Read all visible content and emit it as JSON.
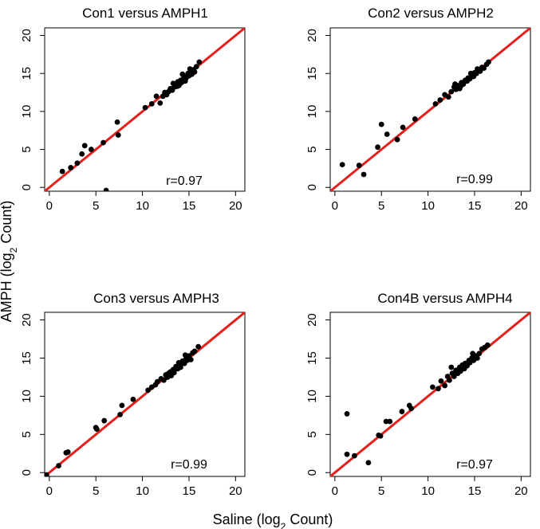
{
  "chart_data": {
    "type": "scatter",
    "x_axis_label": {
      "main": "Saline (log",
      "sub": "2",
      "rest": " Count)"
    },
    "y_axis_label": {
      "main": "AMPH (log",
      "sub": "2",
      "rest": " Count)"
    },
    "xlim": [
      -0.5,
      21
    ],
    "ylim": [
      -0.5,
      21
    ],
    "ticks": [
      0,
      5,
      10,
      15,
      20
    ],
    "tick_labels": [
      "0",
      "5",
      "10",
      "15",
      "20"
    ],
    "reference_line": {
      "slope": 1,
      "intercept": 0,
      "color": "#e3201b"
    },
    "point_color": "#000000",
    "panels": [
      {
        "title": "Con1 versus AMPH1",
        "r_label": "r=0.97",
        "points": [
          [
            1.4,
            2.1
          ],
          [
            2.3,
            2.6
          ],
          [
            3.0,
            3.2
          ],
          [
            3.5,
            4.4
          ],
          [
            3.8,
            5.5
          ],
          [
            4.5,
            5.0
          ],
          [
            5.8,
            5.9
          ],
          [
            6.1,
            -0.4
          ],
          [
            7.3,
            8.6
          ],
          [
            7.4,
            6.9
          ],
          [
            10.3,
            10.5
          ],
          [
            11.0,
            11.0
          ],
          [
            11.5,
            12.0
          ],
          [
            11.9,
            11.1
          ],
          [
            12.2,
            12.0
          ],
          [
            12.4,
            12.5
          ],
          [
            12.8,
            12.6
          ],
          [
            13.0,
            13.0
          ],
          [
            13.2,
            12.8
          ],
          [
            13.4,
            13.2
          ],
          [
            13.5,
            13.5
          ],
          [
            13.7,
            13.3
          ],
          [
            13.8,
            13.9
          ],
          [
            14.0,
            13.6
          ],
          [
            14.1,
            14.1
          ],
          [
            14.2,
            13.8
          ],
          [
            14.4,
            14.3
          ],
          [
            14.5,
            14.6
          ],
          [
            14.6,
            14.0
          ],
          [
            14.7,
            14.4
          ],
          [
            14.9,
            15.0
          ],
          [
            15.0,
            14.7
          ],
          [
            15.2,
            15.3
          ],
          [
            15.3,
            14.9
          ],
          [
            15.5,
            15.5
          ],
          [
            15.6,
            15.2
          ],
          [
            15.8,
            15.9
          ],
          [
            16.1,
            16.5
          ],
          [
            14.3,
            14.9
          ],
          [
            13.9,
            13.4
          ],
          [
            15.1,
            15.6
          ],
          [
            12.6,
            12.2
          ],
          [
            13.3,
            13.7
          ]
        ]
      },
      {
        "title": "Con2 versus AMPH2",
        "r_label": "r=0.99",
        "points": [
          [
            0.8,
            3.0
          ],
          [
            2.6,
            2.9
          ],
          [
            3.1,
            1.7
          ],
          [
            4.6,
            5.3
          ],
          [
            5.0,
            8.3
          ],
          [
            5.6,
            7.0
          ],
          [
            6.7,
            6.3
          ],
          [
            7.3,
            7.9
          ],
          [
            8.6,
            9.0
          ],
          [
            10.8,
            11.0
          ],
          [
            11.3,
            11.5
          ],
          [
            11.8,
            12.2
          ],
          [
            12.2,
            11.9
          ],
          [
            12.5,
            12.6
          ],
          [
            12.8,
            13.2
          ],
          [
            13.0,
            12.9
          ],
          [
            13.2,
            13.4
          ],
          [
            13.5,
            13.3
          ],
          [
            13.6,
            13.8
          ],
          [
            13.8,
            13.6
          ],
          [
            14.0,
            14.1
          ],
          [
            14.2,
            14.0
          ],
          [
            14.3,
            14.4
          ],
          [
            14.5,
            14.3
          ],
          [
            14.7,
            14.8
          ],
          [
            14.9,
            14.6
          ],
          [
            15.0,
            15.1
          ],
          [
            15.2,
            15.0
          ],
          [
            15.4,
            15.4
          ],
          [
            15.6,
            15.3
          ],
          [
            15.8,
            15.8
          ],
          [
            16.0,
            15.7
          ],
          [
            16.3,
            16.2
          ],
          [
            16.5,
            16.5
          ],
          [
            12.9,
            13.6
          ],
          [
            13.4,
            13.0
          ],
          [
            14.6,
            15.0
          ],
          [
            15.3,
            15.6
          ]
        ]
      },
      {
        "title": "Con3 versus AMPH3",
        "r_label": "r=0.99",
        "points": [
          [
            -0.3,
            -0.3
          ],
          [
            1.0,
            0.9
          ],
          [
            1.8,
            2.6
          ],
          [
            2.0,
            2.7
          ],
          [
            5.0,
            5.9
          ],
          [
            5.1,
            5.7
          ],
          [
            5.9,
            6.8
          ],
          [
            7.6,
            7.6
          ],
          [
            7.8,
            8.8
          ],
          [
            9.0,
            9.6
          ],
          [
            10.6,
            10.8
          ],
          [
            11.0,
            11.2
          ],
          [
            11.4,
            11.5
          ],
          [
            11.6,
            11.9
          ],
          [
            12.0,
            12.3
          ],
          [
            12.3,
            12.1
          ],
          [
            12.5,
            12.8
          ],
          [
            12.7,
            12.5
          ],
          [
            13.0,
            13.2
          ],
          [
            13.1,
            12.7
          ],
          [
            13.3,
            13.5
          ],
          [
            13.4,
            13.1
          ],
          [
            13.6,
            13.9
          ],
          [
            13.8,
            13.6
          ],
          [
            14.0,
            14.2
          ],
          [
            14.1,
            13.8
          ],
          [
            14.3,
            14.6
          ],
          [
            14.5,
            14.3
          ],
          [
            14.7,
            15.0
          ],
          [
            14.8,
            14.7
          ],
          [
            15.0,
            15.3
          ],
          [
            15.2,
            14.8
          ],
          [
            15.4,
            15.7
          ],
          [
            15.6,
            15.9
          ],
          [
            16.0,
            16.5
          ],
          [
            13.9,
            14.4
          ],
          [
            12.8,
            13.0
          ],
          [
            14.6,
            15.4
          ]
        ]
      },
      {
        "title": "Con4B versus AMPH4",
        "r_label": "r=0.97",
        "points": [
          [
            1.3,
            7.7
          ],
          [
            1.3,
            2.4
          ],
          [
            2.1,
            2.2
          ],
          [
            3.6,
            1.3
          ],
          [
            4.7,
            4.9
          ],
          [
            4.9,
            4.8
          ],
          [
            5.5,
            6.7
          ],
          [
            5.9,
            6.7
          ],
          [
            7.2,
            8.0
          ],
          [
            8.0,
            8.8
          ],
          [
            8.2,
            8.4
          ],
          [
            10.5,
            11.2
          ],
          [
            11.1,
            11.0
          ],
          [
            11.4,
            12.0
          ],
          [
            11.8,
            11.4
          ],
          [
            12.1,
            12.6
          ],
          [
            12.3,
            12.1
          ],
          [
            12.6,
            13.0
          ],
          [
            12.8,
            12.6
          ],
          [
            13.0,
            13.4
          ],
          [
            13.2,
            13.0
          ],
          [
            13.4,
            13.8
          ],
          [
            13.5,
            13.3
          ],
          [
            13.7,
            14.1
          ],
          [
            13.9,
            13.6
          ],
          [
            14.0,
            14.3
          ],
          [
            14.2,
            14.0
          ],
          [
            14.4,
            14.7
          ],
          [
            14.5,
            14.4
          ],
          [
            14.7,
            15.0
          ],
          [
            14.9,
            14.7
          ],
          [
            15.1,
            15.3
          ],
          [
            15.3,
            15.0
          ],
          [
            15.5,
            15.6
          ],
          [
            15.8,
            16.2
          ],
          [
            16.1,
            16.4
          ],
          [
            16.4,
            16.7
          ],
          [
            12.5,
            13.8
          ],
          [
            14.8,
            15.6
          ]
        ]
      }
    ]
  }
}
